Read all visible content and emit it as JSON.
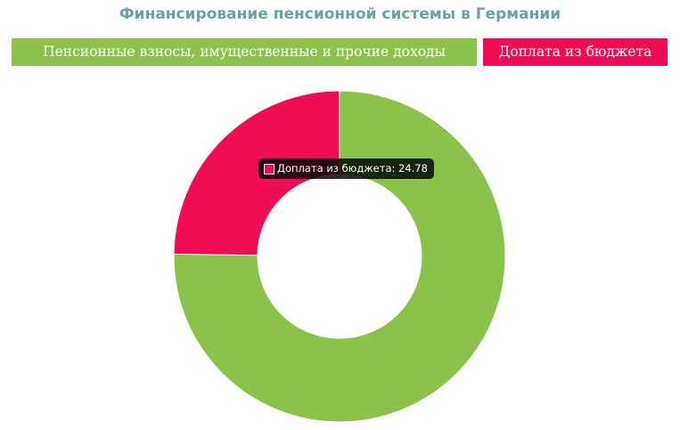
{
  "chart_data": {
    "type": "pie",
    "donut": true,
    "title": "Финансирование пенсионной системы в Германии",
    "legend_position": "top",
    "series": [
      {
        "name": "Пенсионные взносы, имущественные и прочие доходы",
        "value": 75.22,
        "color": "#8bc34a"
      },
      {
        "name": "Доплата из бюджета",
        "value": 24.78,
        "color": "#ef0e56"
      }
    ]
  },
  "tooltip": {
    "label": "Доплата из бюджета",
    "value": "24.78",
    "text": "Доплата из бюджета: 24.78",
    "color": "#ef0e56"
  }
}
